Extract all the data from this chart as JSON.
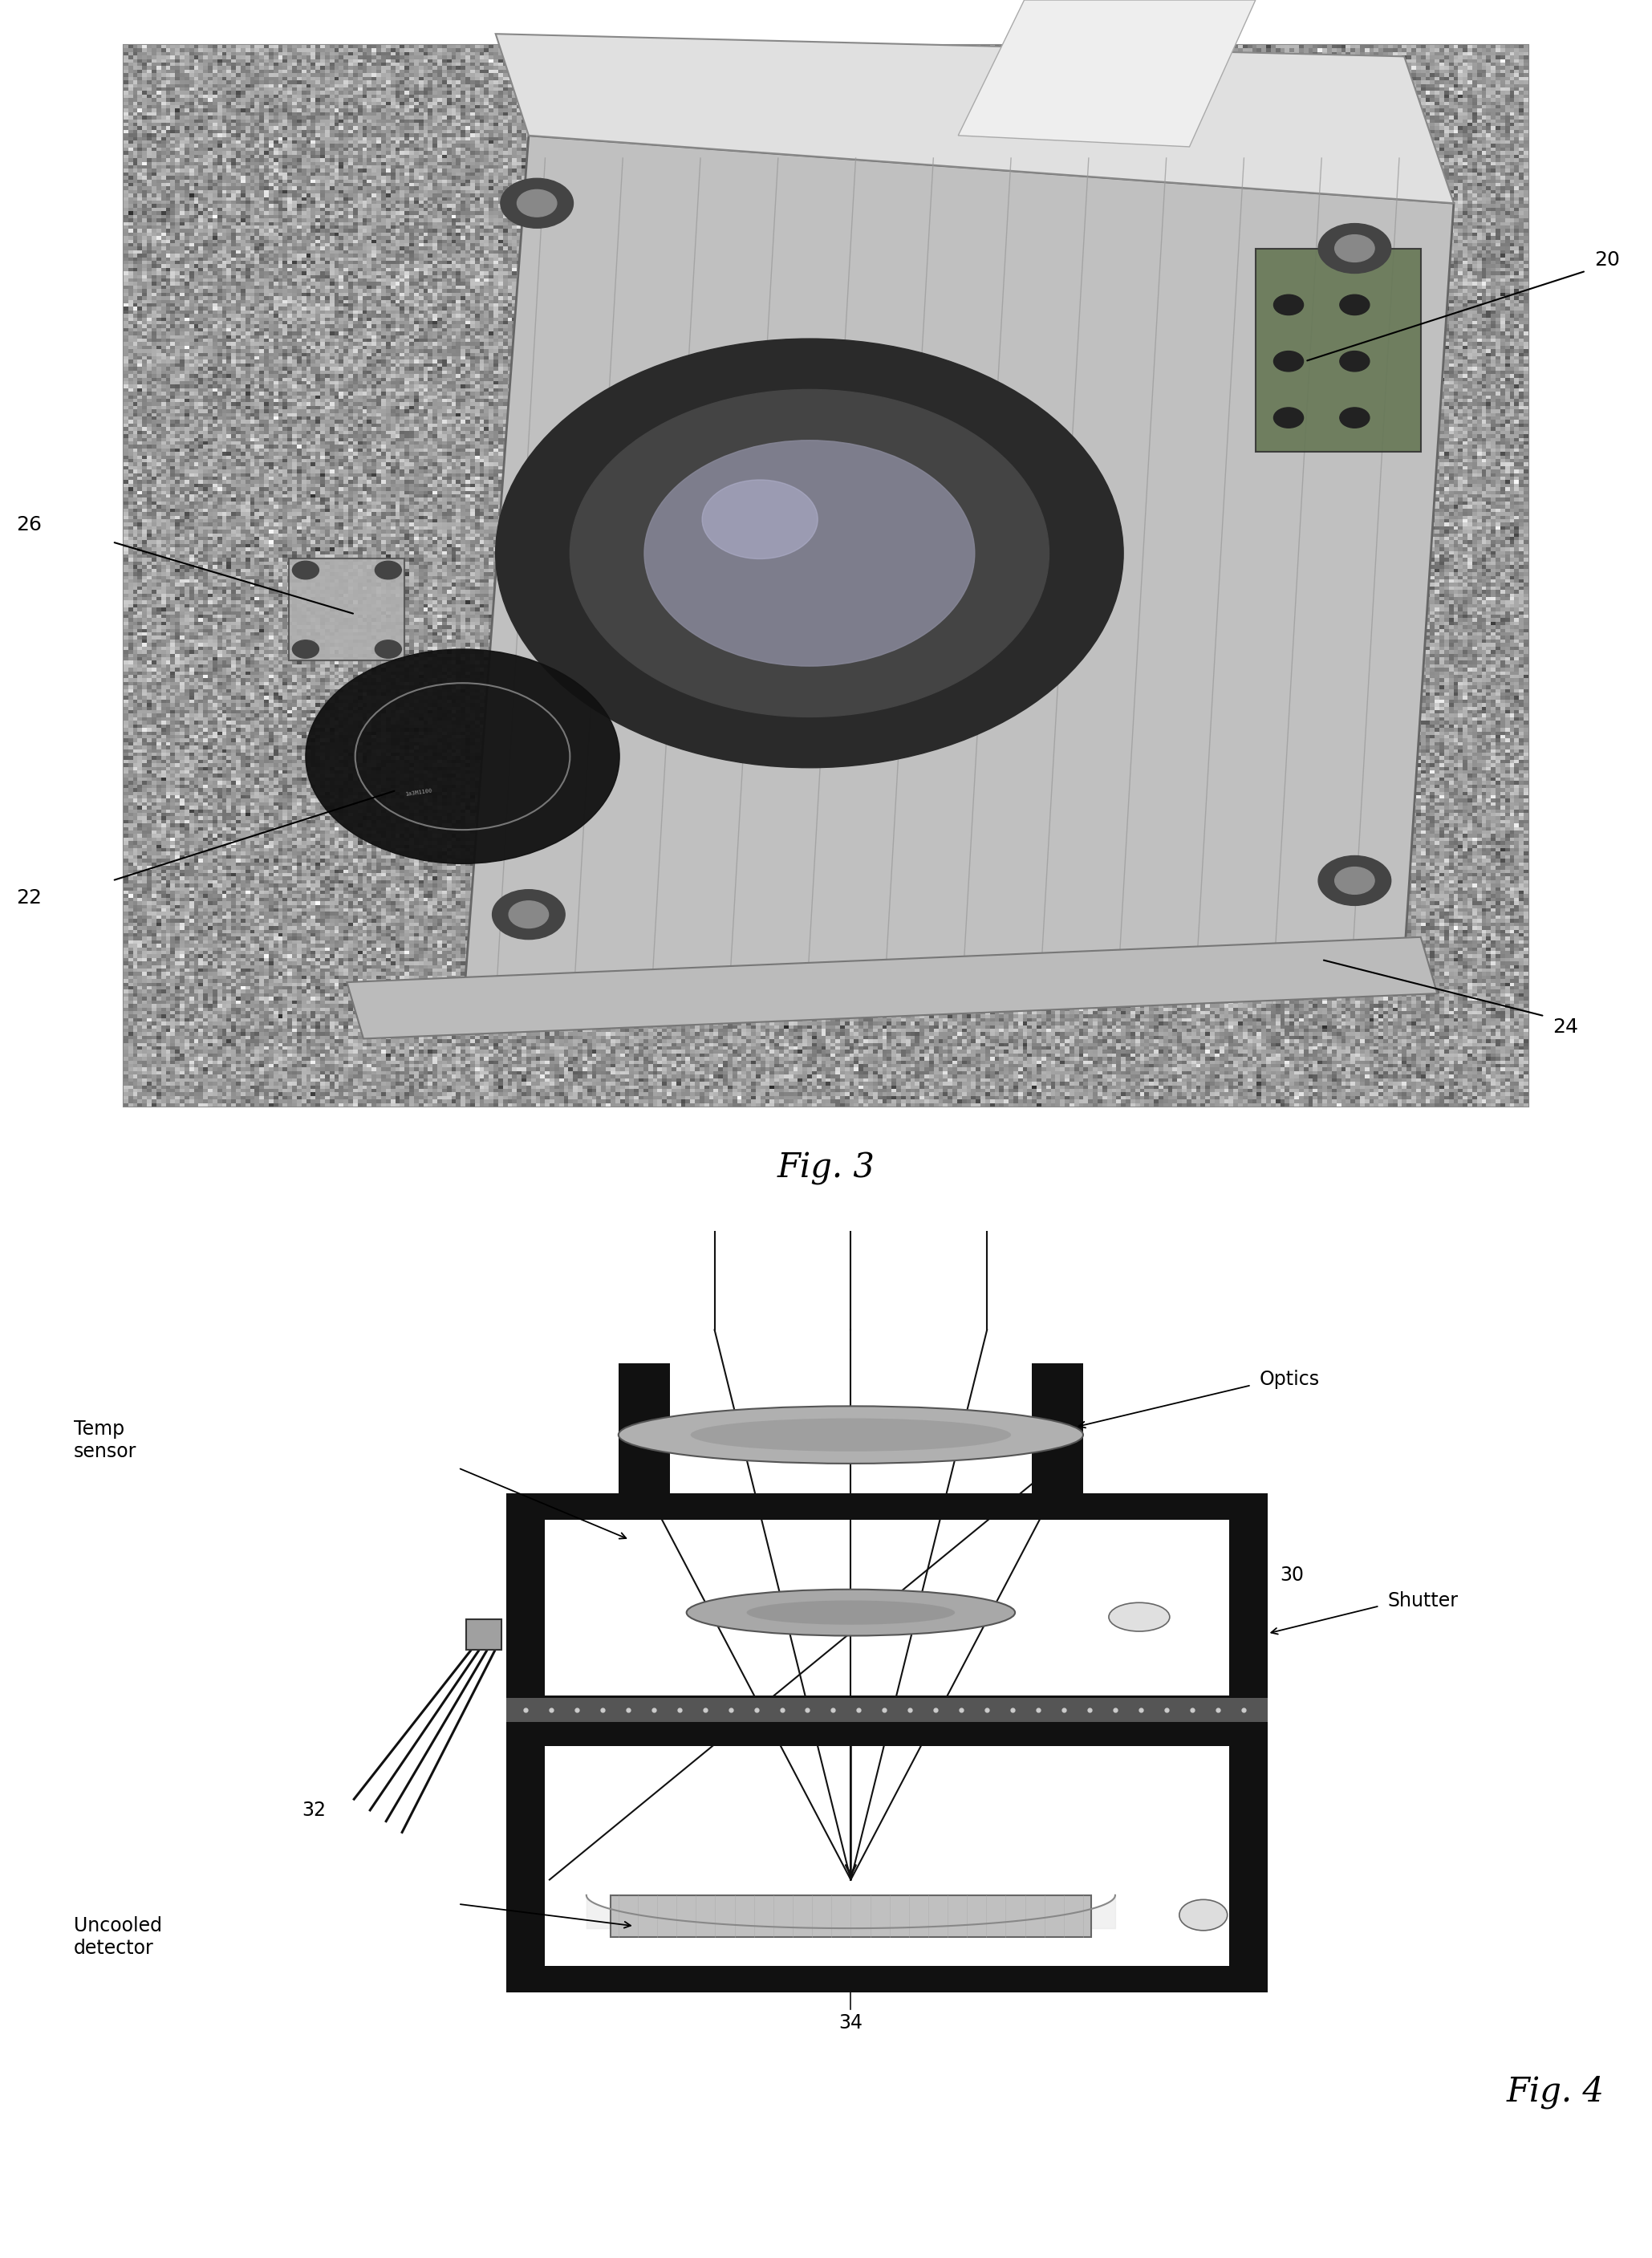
{
  "fig3_caption": "Fig. 3",
  "fig4_caption": "Fig. 4",
  "label_20": "20",
  "label_22": "22",
  "label_24": "24",
  "label_26": "26",
  "label_30": "30",
  "label_32": "32",
  "label_34": "34",
  "text_optics": "Optics",
  "text_shutter": "Shutter",
  "text_temp_sensor": "Temp\nsensor",
  "text_uncooled": "Uncooled\ndetector",
  "bg_color": "#ffffff",
  "dark": "#111111",
  "lens_gray": "#a0a0a0",
  "lens_edge": "#666666",
  "frame_thick": 5.0,
  "font_size_label": 18,
  "font_size_caption": 30,
  "font_size_annot": 17
}
